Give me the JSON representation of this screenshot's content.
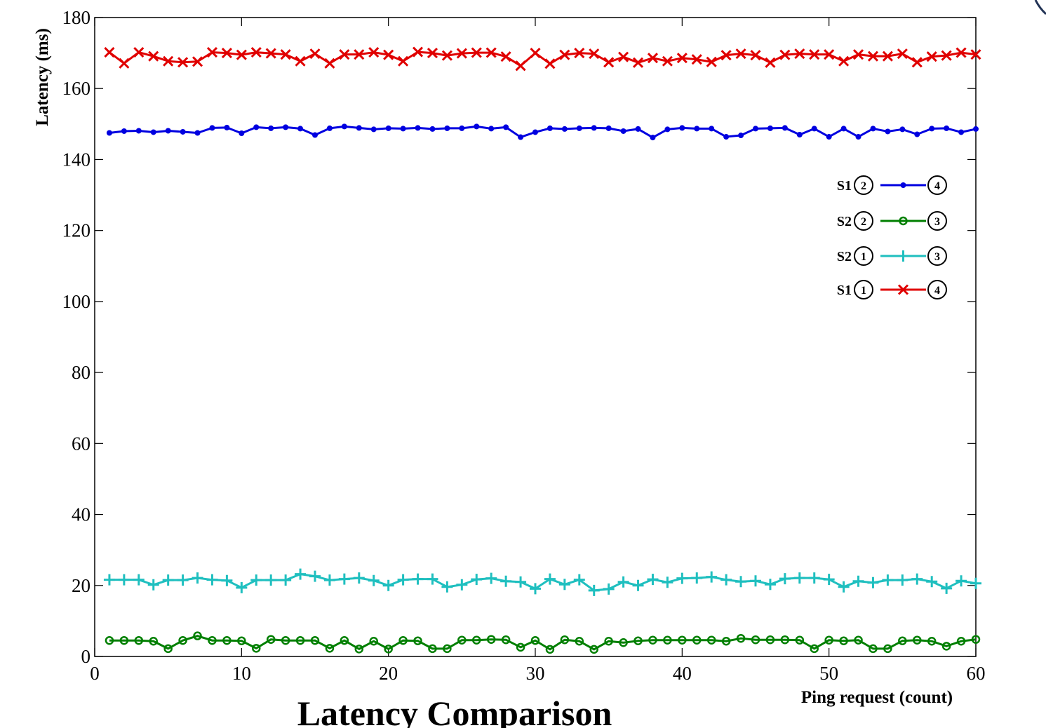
{
  "chart_data": {
    "type": "line",
    "title": "Latency Comparison",
    "xlabel": "Ping request (count)",
    "ylabel": "Latency (ms)",
    "xlim": [
      0,
      60
    ],
    "ylim": [
      0,
      180
    ],
    "xticks": [
      0,
      10,
      20,
      30,
      40,
      50,
      60
    ],
    "yticks": [
      0,
      20,
      40,
      60,
      80,
      100,
      120,
      140,
      160,
      180
    ],
    "grid": false,
    "legend_position": "right",
    "x": [
      1,
      2,
      3,
      4,
      5,
      6,
      7,
      8,
      9,
      10,
      11,
      12,
      13,
      14,
      15,
      16,
      17,
      18,
      19,
      20,
      21,
      22,
      23,
      24,
      25,
      26,
      27,
      28,
      29,
      30,
      31,
      32,
      33,
      34,
      35,
      36,
      37,
      38,
      39,
      40,
      41,
      42,
      43,
      44,
      45,
      46,
      47,
      48,
      49,
      50,
      51,
      52,
      53,
      54,
      55,
      56,
      57,
      58,
      59,
      60
    ],
    "series": [
      {
        "name": "S1 (2) → (4)",
        "switch": "S1",
        "from": "2",
        "to": "4",
        "color": "#0000e0",
        "marker": "dot",
        "values": [
          147.5,
          148.0,
          148.1,
          147.7,
          148.1,
          147.8,
          147.5,
          148.9,
          149.0,
          147.4,
          149.1,
          148.8,
          149.1,
          148.7,
          146.9,
          148.8,
          149.3,
          148.9,
          148.5,
          148.8,
          148.7,
          148.9,
          148.6,
          148.8,
          148.8,
          149.3,
          148.7,
          149.1,
          146.3,
          147.7,
          148.8,
          148.6,
          148.8,
          148.9,
          148.8,
          148.0,
          148.6,
          146.2,
          148.5,
          148.9,
          148.7,
          148.7,
          146.4,
          146.8,
          148.7,
          148.8,
          148.9,
          147.0,
          148.7,
          146.4,
          148.7,
          146.4,
          148.7,
          147.9,
          148.5,
          147.1,
          148.7,
          148.8,
          147.7,
          148.6
        ]
      },
      {
        "name": "S2 (2) → (3)",
        "switch": "S2",
        "from": "2",
        "to": "3",
        "color": "#007f00",
        "marker": "circle",
        "values": [
          4.5,
          4.5,
          4.5,
          4.3,
          2.2,
          4.5,
          5.8,
          4.5,
          4.5,
          4.4,
          2.3,
          4.8,
          4.5,
          4.5,
          4.5,
          2.3,
          4.5,
          2.1,
          4.3,
          2.1,
          4.5,
          4.4,
          2.2,
          2.2,
          4.6,
          4.6,
          4.8,
          4.7,
          2.6,
          4.5,
          2.0,
          4.7,
          4.3,
          2.0,
          4.3,
          3.9,
          4.4,
          4.6,
          4.6,
          4.6,
          4.6,
          4.6,
          4.3,
          5.1,
          4.7,
          4.7,
          4.7,
          4.6,
          2.2,
          4.6,
          4.4,
          4.6,
          2.2,
          2.2,
          4.4,
          4.6,
          4.3,
          2.9,
          4.3,
          4.8
        ]
      },
      {
        "name": "S2 (1) → (3)",
        "switch": "S2",
        "from": "1",
        "to": "3",
        "color": "#1fbfbf",
        "marker": "plus",
        "values": [
          21.6,
          21.6,
          21.6,
          20.2,
          21.5,
          21.5,
          22.1,
          21.6,
          21.4,
          19.4,
          21.5,
          21.5,
          21.5,
          23.2,
          22.6,
          21.5,
          21.8,
          22.1,
          21.4,
          20.0,
          21.6,
          21.8,
          21.8,
          19.6,
          20.2,
          21.7,
          22.0,
          21.2,
          21.0,
          19.1,
          21.8,
          20.3,
          21.6,
          18.6,
          19.0,
          21.0,
          20.0,
          21.7,
          20.9,
          22.0,
          22.1,
          22.4,
          21.6,
          21.1,
          21.3,
          20.3,
          21.9,
          22.1,
          22.1,
          21.7,
          19.6,
          21.2,
          20.8,
          21.5,
          21.5,
          21.8,
          21.1,
          19.2,
          21.3,
          20.6
        ]
      },
      {
        "name": "S1 (1) → (4)",
        "switch": "S1",
        "from": "1",
        "to": "4",
        "color": "#e00000",
        "marker": "x",
        "values": [
          170.2,
          167.1,
          170.2,
          169.1,
          167.7,
          167.4,
          167.6,
          170.2,
          170.0,
          169.5,
          170.2,
          169.9,
          169.6,
          167.7,
          169.8,
          167.1,
          169.6,
          169.6,
          170.2,
          169.5,
          167.7,
          170.3,
          170.0,
          169.3,
          169.9,
          170.1,
          170.1,
          169.0,
          166.4,
          170.0,
          167.0,
          169.5,
          170.0,
          169.8,
          167.4,
          168.9,
          167.3,
          168.6,
          167.7,
          168.6,
          168.2,
          167.5,
          169.4,
          169.8,
          169.4,
          167.3,
          169.5,
          169.8,
          169.6,
          169.6,
          167.7,
          169.6,
          169.1,
          169.1,
          169.8,
          167.4,
          169.0,
          169.3,
          170.1,
          169.6
        ]
      }
    ]
  }
}
